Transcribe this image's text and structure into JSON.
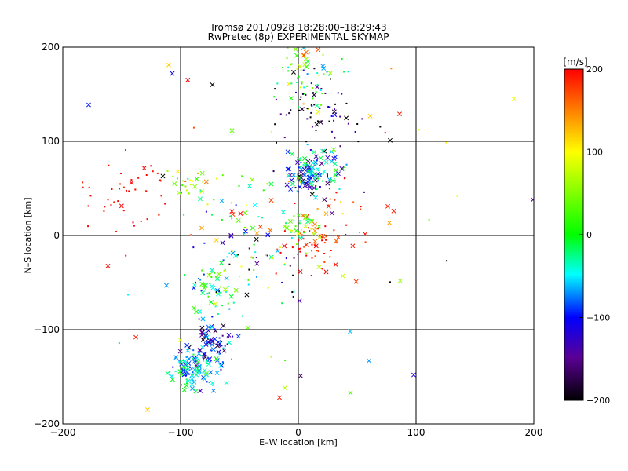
{
  "chart_data": {
    "type": "scatter",
    "title": "Tromsø 20170928 18:28:00–18:29:43",
    "subtitle": "RwPretec (8p) EXPERIMENTAL SKYMAP",
    "xlabel": "E–W location [km]",
    "ylabel": "N–S location [km]",
    "xlim": [
      -200,
      200
    ],
    "ylim": [
      -200,
      200
    ],
    "xticks": [
      "−200",
      "−100",
      "0",
      "100",
      "200"
    ],
    "yticks": [
      "−200",
      "−100",
      "0",
      "100",
      "200"
    ],
    "grid": true,
    "colorbar": {
      "label": "[m/s]",
      "range": [
        -200,
        200
      ],
      "ticks": [
        "200",
        "100",
        "0",
        "−100",
        "−200"
      ]
    },
    "clusters": [
      {
        "x": -145,
        "y": 45,
        "sx": 18,
        "sy": 18,
        "n": 45,
        "v": 200,
        "vs": 12,
        "xf": 0.05
      },
      {
        "x": -93,
        "y": 55,
        "sx": 8,
        "sy": 12,
        "n": 28,
        "v": 50,
        "vs": 50,
        "xf": 0.25
      },
      {
        "x": 10,
        "y": 168,
        "sx": 14,
        "sy": 18,
        "n": 75,
        "v": 10,
        "vs": 80,
        "xf": 0.3
      },
      {
        "x": 18,
        "y": 125,
        "sx": 18,
        "sy": 20,
        "n": 55,
        "v": -180,
        "vs": 40,
        "xf": 0.15
      },
      {
        "x": 12,
        "y": 68,
        "sx": 13,
        "sy": 12,
        "n": 150,
        "v": -70,
        "vs": 55,
        "xf": 0.5
      },
      {
        "x": 3,
        "y": 12,
        "sx": 7,
        "sy": 8,
        "n": 40,
        "v": 40,
        "vs": 55,
        "xf": 0.4
      },
      {
        "x": 12,
        "y": -8,
        "sx": 15,
        "sy": 14,
        "n": 55,
        "v": 190,
        "vs": 25,
        "xf": 0.25
      },
      {
        "x": -35,
        "y": -25,
        "sx": 22,
        "sy": 22,
        "n": 60,
        "v": -40,
        "vs": 110,
        "xf": 0.35
      },
      {
        "x": -72,
        "y": -58,
        "sx": 11,
        "sy": 14,
        "n": 55,
        "v": -30,
        "vs": 50,
        "xf": 0.55
      },
      {
        "x": -72,
        "y": -110,
        "sx": 9,
        "sy": 12,
        "n": 70,
        "v": -110,
        "vs": 45,
        "xf": 0.55
      },
      {
        "x": -88,
        "y": -143,
        "sx": 11,
        "sy": 10,
        "n": 110,
        "v": -55,
        "vs": 40,
        "xf": 0.6
      },
      {
        "x": -50,
        "y": 30,
        "sx": 15,
        "sy": 22,
        "n": 28,
        "v": 0,
        "vs": 100,
        "xf": 0.3
      },
      {
        "x": 30,
        "y": 20,
        "sx": 22,
        "sy": 18,
        "n": 30,
        "v": 180,
        "vs": 30,
        "xf": 0.25
      },
      {
        "x": 0,
        "y": 0,
        "sx": 80,
        "sy": 90,
        "n": 45,
        "v": 0,
        "vs": 150,
        "xf": 0.3
      }
    ],
    "points": [
      {
        "x": 183,
        "y": 145,
        "v": 90
      },
      {
        "x": 78,
        "y": 101,
        "v": -200
      },
      {
        "x": 86,
        "y": 129,
        "v": 190
      },
      {
        "x": 98,
        "y": -148,
        "v": -120
      },
      {
        "x": 60,
        "y": -133,
        "v": -70
      },
      {
        "x": -128,
        "y": -185,
        "v": 120
      },
      {
        "x": -138,
        "y": -108,
        "v": 190
      },
      {
        "x": -16,
        "y": -172,
        "v": 190
      },
      {
        "x": 2,
        "y": -149,
        "v": -160
      },
      {
        "x": -110,
        "y": 181,
        "v": 120
      },
      {
        "x": -107,
        "y": 172,
        "v": -110
      },
      {
        "x": -73,
        "y": 160,
        "v": -200
      },
      {
        "x": -115,
        "y": 63,
        "v": -200
      },
      {
        "x": -112,
        "y": -53,
        "v": -70
      },
      {
        "x": 44,
        "y": -102,
        "v": -60
      },
      {
        "x": 81,
        "y": 26,
        "v": 190
      },
      {
        "x": 76,
        "y": 31,
        "v": 190
      },
      {
        "x": -82,
        "y": 8,
        "v": 140
      }
    ]
  }
}
